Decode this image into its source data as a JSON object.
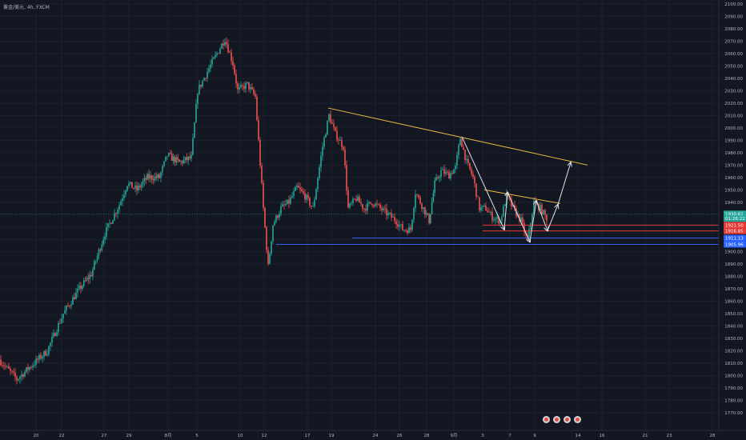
{
  "header": {
    "symbol_label": "黄金/美元, 4h, FXCM"
  },
  "theme": {
    "background": "#131722",
    "up_color": "#26a69a",
    "down_color": "#ef5350",
    "trendline_color": "#f0c040",
    "arrow_color": "#e0e3eb",
    "support_red": "#e53935",
    "support_blue": "#2962ff",
    "current_price_color": "#26a69a"
  },
  "chart_data": {
    "type": "candlestick",
    "y_range": [
      1765,
      2100
    ],
    "y_ticks": [
      1770,
      1780,
      1790,
      1800,
      1810,
      1820,
      1830,
      1840,
      1850,
      1860,
      1870,
      1880,
      1890,
      1900,
      1910,
      1920,
      1930,
      1940,
      1950,
      1960,
      1970,
      1980,
      1990,
      2000,
      2010,
      2020,
      2030,
      2040,
      2050,
      2060,
      2070,
      2080,
      2090,
      2100
    ],
    "x_range": [
      0,
      890
    ],
    "x_ticks": [
      {
        "label": "20",
        "x": 45
      },
      {
        "label": "22",
        "x": 77
      },
      {
        "label": "27",
        "x": 130
      },
      {
        "label": "29",
        "x": 161
      },
      {
        "label": "8月",
        "x": 210
      },
      {
        "label": "5",
        "x": 246
      },
      {
        "label": "10",
        "x": 300
      },
      {
        "label": "12",
        "x": 330
      },
      {
        "label": "17",
        "x": 384
      },
      {
        "label": "19",
        "x": 414
      },
      {
        "label": "24",
        "x": 469
      },
      {
        "label": "26",
        "x": 499
      },
      {
        "label": "28",
        "x": 533
      },
      {
        "label": "9月",
        "x": 567
      },
      {
        "label": "3",
        "x": 603
      },
      {
        "label": "7",
        "x": 637
      },
      {
        "label": "9",
        "x": 668
      },
      {
        "label": "14",
        "x": 722
      },
      {
        "label": "16",
        "x": 752
      },
      {
        "label": "21",
        "x": 806
      },
      {
        "label": "23",
        "x": 836
      },
      {
        "label": "28",
        "x": 890
      }
    ],
    "price_tags": [
      {
        "label": "1930.61",
        "value": 1930.61,
        "color": "#26a69a"
      },
      {
        "label": "01:26:22",
        "value": 1926.8,
        "color": "#26a69a"
      },
      {
        "label": "1921.50",
        "value": 1921.5,
        "color": "#e53935"
      },
      {
        "label": "1916.85",
        "value": 1916.85,
        "color": "#e53935"
      },
      {
        "label": "1911.13",
        "value": 1911.13,
        "color": "#2962ff"
      },
      {
        "label": "1905.96",
        "value": 1905.96,
        "color": "#2962ff"
      }
    ],
    "anchors": [
      [
        0,
        1813
      ],
      [
        22,
        1797
      ],
      [
        40,
        1808
      ],
      [
        60,
        1820
      ],
      [
        80,
        1850
      ],
      [
        100,
        1870
      ],
      [
        115,
        1882
      ],
      [
        132,
        1915
      ],
      [
        150,
        1938
      ],
      [
        160,
        1955
      ],
      [
        172,
        1950
      ],
      [
        185,
        1960
      ],
      [
        200,
        1960
      ],
      [
        210,
        1978
      ],
      [
        225,
        1972
      ],
      [
        240,
        1976
      ],
      [
        248,
        2030
      ],
      [
        262,
        2048
      ],
      [
        272,
        2060
      ],
      [
        282,
        2072
      ],
      [
        292,
        2052
      ],
      [
        298,
        2030
      ],
      [
        310,
        2035
      ],
      [
        320,
        2025
      ],
      [
        330,
        1935
      ],
      [
        336,
        1888
      ],
      [
        342,
        1922
      ],
      [
        352,
        1935
      ],
      [
        362,
        1940
      ],
      [
        372,
        1952
      ],
      [
        382,
        1945
      ],
      [
        392,
        1935
      ],
      [
        404,
        1985
      ],
      [
        412,
        2010
      ],
      [
        420,
        1995
      ],
      [
        430,
        1985
      ],
      [
        436,
        1935
      ],
      [
        446,
        1943
      ],
      [
        456,
        1935
      ],
      [
        466,
        1940
      ],
      [
        476,
        1935
      ],
      [
        486,
        1930
      ],
      [
        496,
        1925
      ],
      [
        504,
        1918
      ],
      [
        514,
        1918
      ],
      [
        520,
        1948
      ],
      [
        530,
        1935
      ],
      [
        537,
        1925
      ],
      [
        544,
        1955
      ],
      [
        552,
        1965
      ],
      [
        562,
        1962
      ],
      [
        570,
        1968
      ],
      [
        576,
        1992
      ],
      [
        584,
        1972
      ],
      [
        592,
        1960
      ],
      [
        600,
        1935
      ],
      [
        608,
        1935
      ],
      [
        616,
        1928
      ],
      [
        626,
        1925
      ],
      [
        634,
        1945
      ],
      [
        642,
        1935
      ],
      [
        652,
        1925
      ],
      [
        660,
        1908
      ],
      [
        668,
        1940
      ],
      [
        676,
        1935
      ],
      [
        684,
        1927
      ]
    ],
    "trendlines": [
      {
        "from": [
          410,
          2016
        ],
        "to": [
          734,
          1970
        ]
      },
      {
        "from": [
          605,
          1950
        ],
        "to": [
          700,
          1939
        ]
      }
    ],
    "projection_path": [
      [
        577,
        1993
      ],
      [
        630,
        1918
      ],
      [
        634,
        1948
      ],
      [
        662,
        1908
      ],
      [
        670,
        1941
      ],
      [
        684,
        1917
      ],
      [
        697,
        1938
      ],
      [
        713,
        1972
      ]
    ],
    "support_levels": [
      {
        "value": 1921.5,
        "color": "#e53935",
        "from_x": 603
      },
      {
        "value": 1916.85,
        "color": "#e53935",
        "from_x": 603
      },
      {
        "value": 1911.13,
        "color": "#2962ff",
        "from_x": 440
      },
      {
        "value": 1905.96,
        "color": "#2962ff",
        "from_x": 345
      }
    ],
    "current_price": 1930.61
  }
}
